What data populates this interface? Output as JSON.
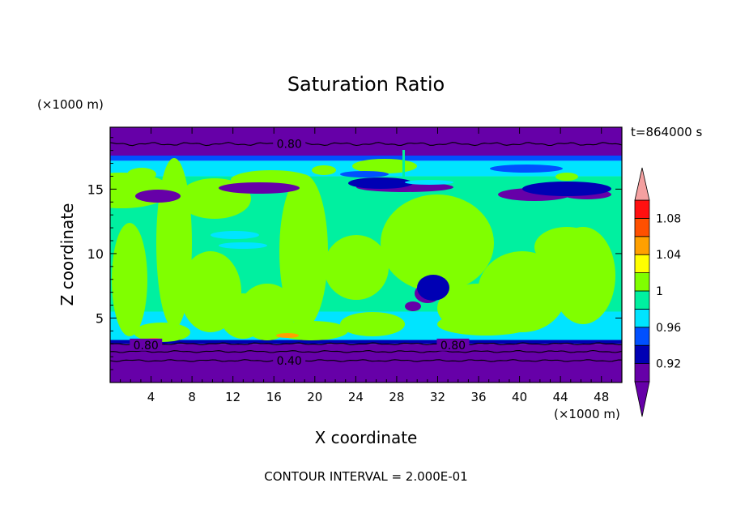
{
  "chart_data": {
    "type": "heatmap",
    "title": "Saturation Ratio",
    "xlabel": "X coordinate",
    "ylabel": "Z coordinate",
    "x_unit": "(×1000 m)",
    "y_unit": "(×1000 m)",
    "time_label": "t=864000 s",
    "footer": "CONTOUR INTERVAL = 2.000E-01",
    "xlim": [
      0,
      50
    ],
    "ylim": [
      0,
      19.8
    ],
    "x_ticks": [
      4,
      8,
      12,
      16,
      20,
      24,
      28,
      32,
      36,
      40,
      44,
      48
    ],
    "x_tick_labels": [
      "4",
      "8",
      "12",
      "16",
      "20",
      "24",
      "28",
      "32",
      "36",
      "40",
      "44",
      "48"
    ],
    "y_ticks": [
      5,
      10,
      15
    ],
    "y_tick_labels": [
      "5",
      "10",
      "15"
    ],
    "colorbar": {
      "levels": [
        0.9,
        0.92,
        0.94,
        0.96,
        0.98,
        1.0,
        1.02,
        1.04,
        1.06,
        1.08,
        1.1
      ],
      "labels": [
        {
          "value": 0.92,
          "text": "0.92"
        },
        {
          "value": 0.96,
          "text": "0.96"
        },
        {
          "value": 1.0,
          "text": "1"
        },
        {
          "value": 1.04,
          "text": "1.04"
        },
        {
          "value": 1.08,
          "text": "1.08"
        }
      ],
      "colors": [
        "#6600a8",
        "#0000b4",
        "#0050ff",
        "#00e4ff",
        "#00f0a0",
        "#80ff00",
        "#ffff00",
        "#ffa000",
        "#ff5000",
        "#ff1010"
      ],
      "under_color": "#6600a8",
      "over_color": "#f4a0a0"
    },
    "bands": [
      {
        "z0": 0,
        "z1": 3.0,
        "value": "below"
      },
      {
        "z0": 3.0,
        "z1": 3.3,
        "value": 0.93
      },
      {
        "z0": 3.3,
        "z1": 5.5,
        "value": 0.97
      },
      {
        "z0": 5.5,
        "z1": 16.0,
        "value": 0.99
      },
      {
        "z0": 16.0,
        "z1": 17.2,
        "value": 0.97
      },
      {
        "z0": 17.2,
        "z1": 17.6,
        "value": 0.95
      },
      {
        "z0": 17.6,
        "z1": 19.8,
        "value": "below"
      }
    ],
    "contour_labels": [
      {
        "x": 17.5,
        "z": 18.5,
        "text": "0.80"
      },
      {
        "x": 3.5,
        "z": 2.9,
        "text": "0.80"
      },
      {
        "x": 33.5,
        "z": 2.9,
        "text": "0.80"
      },
      {
        "x": 17.5,
        "z": 1.7,
        "text": "0.40"
      }
    ]
  }
}
